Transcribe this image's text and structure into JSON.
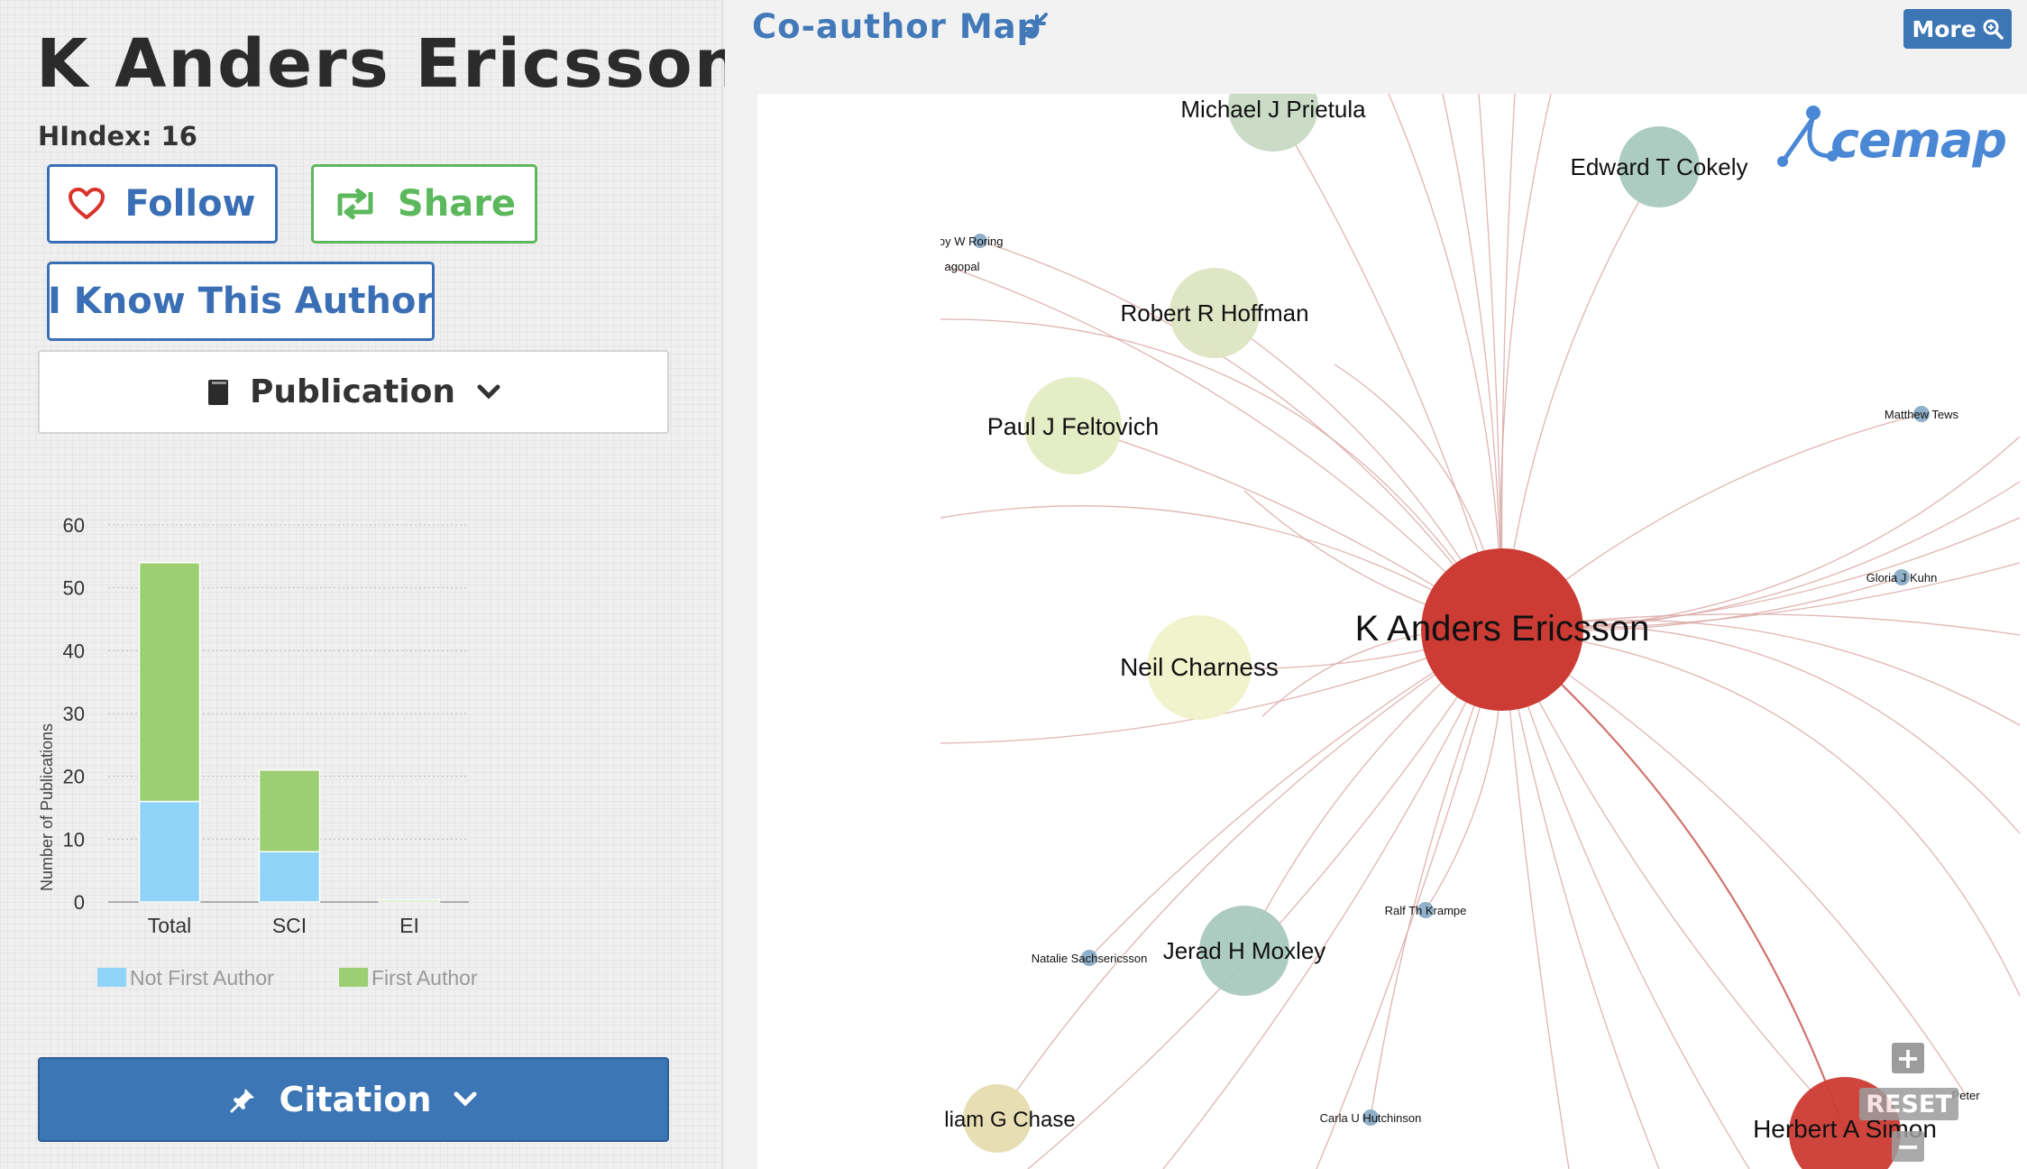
{
  "author": {
    "name": "K Anders Ericsson",
    "hindex": "HIndex: 16"
  },
  "actions": {
    "follow_label": "Follow",
    "share_label": "Share",
    "know_label": "I Know This Author"
  },
  "publication": {
    "label": "Publication"
  },
  "chart_data": {
    "type": "bar",
    "stacked": true,
    "categories": [
      "Total",
      "SCI",
      "EI"
    ],
    "series": [
      {
        "name": "Not First Author",
        "values": [
          16,
          8,
          0
        ],
        "color": "#8fd3f8"
      },
      {
        "name": "First Author",
        "values": [
          38,
          13,
          0.3
        ],
        "color": "#9ccf72"
      }
    ],
    "ylabel": "Number of Publications",
    "ylim": [
      0,
      60
    ],
    "yticks": [
      "0",
      "10",
      "20",
      "30",
      "40",
      "50",
      "60"
    ],
    "grid": true,
    "legend": "bottom"
  },
  "citation": {
    "label": "Citation"
  },
  "coauthor_map": {
    "title": "Co-author Map",
    "more_label": "More",
    "logo_text": "cemap",
    "reset_label": "RESET",
    "zoom_in_label": "+",
    "zoom_out_label": "−",
    "colors": {
      "center": "#cc3b34",
      "edge": "#d9a8a6"
    },
    "center": {
      "name": "K Anders Ericsson",
      "color": "#cc3b34"
    },
    "nodes": [
      {
        "name": "Michael J Prietula",
        "color": "#c7d9c3"
      },
      {
        "name": "Edward T Cokely",
        "color": "#a8c8be"
      },
      {
        "name": "Robert R Hoffman",
        "color": "#dde5c2"
      },
      {
        "name": "Paul J Feltovich",
        "color": "#e4ecc4"
      },
      {
        "name": "Neil Charness",
        "color": "#eff2c9"
      },
      {
        "name": "Jerad H Moxley",
        "color": "#a8c8be"
      },
      {
        "name": "liam G Chase",
        "color": "#e7dcb0"
      },
      {
        "name": "Herbert A Simon",
        "color": "#cc3b34"
      },
      {
        "name": "Roy W Roring",
        "color": "#8fb0c8"
      },
      {
        "name": "agopal",
        "color": "#8fb0c8"
      },
      {
        "name": "Matthew Tews",
        "color": "#8fb0c8"
      },
      {
        "name": "Gloria J Kuhn",
        "color": "#8fb0c8"
      },
      {
        "name": "Ralf Th Krampe",
        "color": "#8fb0c8"
      },
      {
        "name": "Natalie Sachsericsson",
        "color": "#8fb0c8"
      },
      {
        "name": "Carla U Hutchinson",
        "color": "#8fb0c8"
      },
      {
        "name": "Peter",
        "color": "#8fb0c8"
      }
    ]
  }
}
